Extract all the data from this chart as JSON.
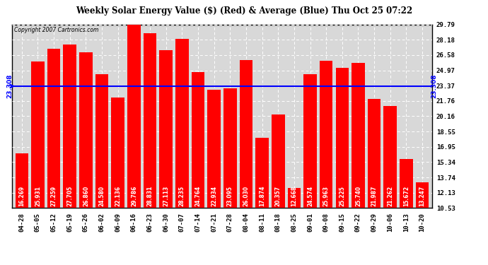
{
  "title": "Weekly Solar Energy Value ($) (Red) & Average (Blue) Thu Oct 25 07:22",
  "copyright": "Copyright 2007 Cartronics.com",
  "average": 23.308,
  "average_label": "23.308",
  "bar_color": "#ff0000",
  "average_line_color": "#0000ff",
  "background_color": "#ffffff",
  "plot_bg_color": "#d8d8d8",
  "categories": [
    "04-28",
    "05-05",
    "05-12",
    "05-19",
    "05-26",
    "06-02",
    "06-09",
    "06-16",
    "06-23",
    "06-30",
    "07-07",
    "07-14",
    "07-21",
    "07-28",
    "08-04",
    "08-11",
    "08-18",
    "08-25",
    "09-01",
    "09-08",
    "09-15",
    "09-22",
    "09-29",
    "10-06",
    "10-13",
    "10-20"
  ],
  "values": [
    16.269,
    25.931,
    27.259,
    27.705,
    26.86,
    24.58,
    22.136,
    29.786,
    28.831,
    27.113,
    28.235,
    24.764,
    22.934,
    23.095,
    26.03,
    17.874,
    20.357,
    12.668,
    24.574,
    25.963,
    25.225,
    25.74,
    21.987,
    21.262,
    15.672,
    13.247
  ],
  "yticks": [
    10.53,
    12.13,
    13.74,
    15.34,
    16.95,
    18.55,
    20.16,
    21.76,
    23.37,
    24.97,
    26.58,
    28.18,
    29.79
  ],
  "ymin": 10.53,
  "ymax": 29.79,
  "bar_bottom": 10.53
}
